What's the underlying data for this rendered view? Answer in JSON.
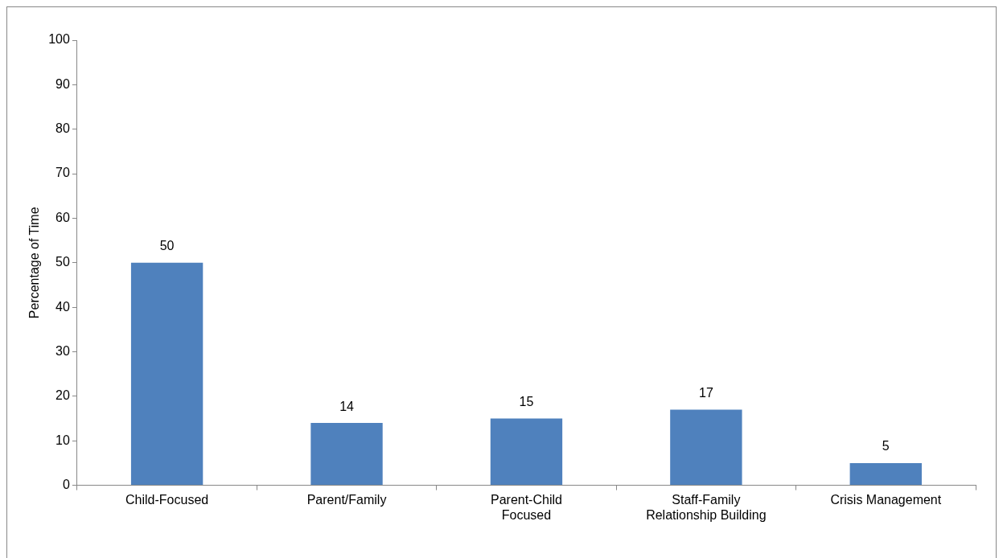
{
  "chart_data": {
    "type": "bar",
    "ylabel": "Percentage of Time",
    "categories": [
      "Child-Focused",
      "Parent/Family",
      "Parent-Child Focused",
      "Staff-Family Relationship Building",
      "Crisis Management"
    ],
    "values": [
      50,
      14,
      15,
      17,
      5
    ],
    "color": "#4f81bd",
    "ylim": [
      0,
      100
    ],
    "yticks": [
      0,
      10,
      20,
      30,
      40,
      50,
      60,
      70,
      80,
      90,
      100
    ],
    "grid": false,
    "legend": false,
    "data_labels": true
  }
}
